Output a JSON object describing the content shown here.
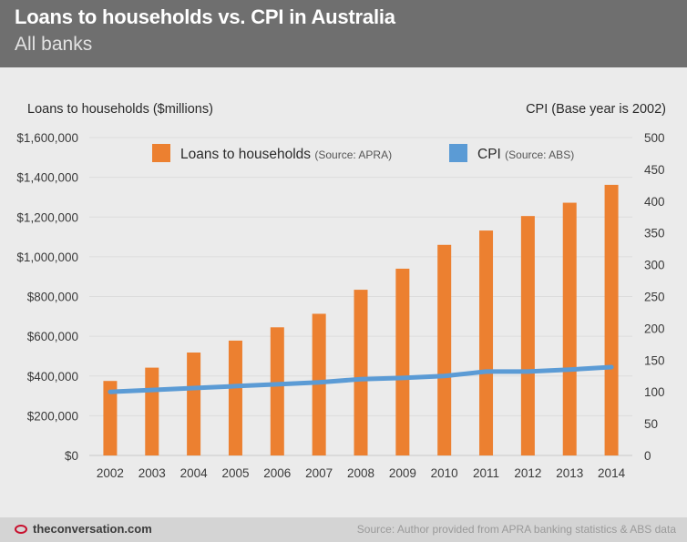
{
  "header": {
    "title": "Loans to households vs. CPI in Australia",
    "subtitle": "All banks"
  },
  "footer": {
    "logo_text": "theconversation.com",
    "source": "Source: Author provided from APRA banking statistics & ABS data"
  },
  "colors": {
    "bar": "#ec8030",
    "line": "#5b9bd5",
    "header_bg": "#6f6f6f",
    "background": "#ebebeb",
    "footer_bg": "#d4d4d4",
    "logo_accent": "#c8102e"
  },
  "chart_data": {
    "type": "bar",
    "categories": [
      "2002",
      "2003",
      "2004",
      "2005",
      "2006",
      "2007",
      "2008",
      "2009",
      "2010",
      "2011",
      "2012",
      "2013",
      "2014"
    ],
    "series": [
      {
        "name": "Loans to households",
        "legend_note": "(Source: APRA)",
        "type": "bar",
        "axis": "left",
        "values": [
          375000,
          442000,
          518000,
          578000,
          645000,
          713000,
          834000,
          940000,
          1060000,
          1132000,
          1205000,
          1272000,
          1362000
        ]
      },
      {
        "name": "CPI",
        "legend_note": "(Source: ABS)",
        "type": "line",
        "axis": "right",
        "values": [
          100,
          103,
          106,
          109,
          112,
          115,
          120,
          122,
          125,
          132,
          132,
          135,
          139
        ]
      }
    ],
    "ylabel": "Loans to households ($millions)",
    "y2label": "CPI (Base year is 2002)",
    "ylim": [
      0,
      1600000
    ],
    "y2lim": [
      0,
      500
    ],
    "yticks": [
      "$0",
      "$200,000",
      "$400,000",
      "$600,000",
      "$800,000",
      "$1,000,000",
      "$1,200,000",
      "$1,400,000",
      "$1,600,000"
    ],
    "y2ticks": [
      "0",
      "50",
      "100",
      "150",
      "200",
      "250",
      "300",
      "350",
      "400",
      "450",
      "500"
    ],
    "grid": true,
    "legend_position": "top-center"
  }
}
